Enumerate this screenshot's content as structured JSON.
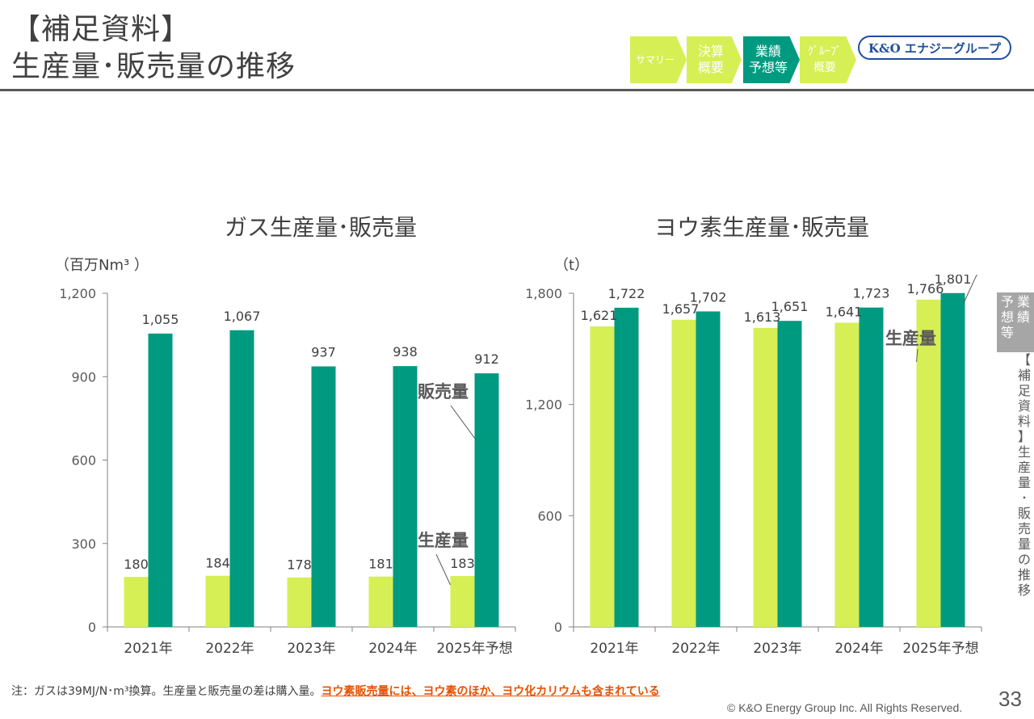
{
  "header": {
    "title_line1": "【補足資料】",
    "title_line2": "生産量･販売量の推移"
  },
  "nav": {
    "items": [
      {
        "label": "サマリー",
        "active": false
      },
      {
        "label": "決算\n概要",
        "active": false
      },
      {
        "label": "業績\n予想等",
        "active": true
      },
      {
        "label": "ｸﾞﾙｰﾌﾟ\n概要",
        "active": false
      }
    ],
    "logo_text": "K&O エナジーグループ"
  },
  "colors": {
    "production": "#d6ef55",
    "sales": "#009a80",
    "axis": "#808080"
  },
  "chart_data": [
    {
      "type": "bar",
      "title": "ガス生産量･販売量",
      "unit": "（百万Nm³ ）",
      "categories": [
        "2021年",
        "2022年",
        "2023年",
        "2024年",
        "2025年予想"
      ],
      "series": [
        {
          "name": "生産量",
          "values": [
            180,
            184,
            178,
            181,
            183
          ]
        },
        {
          "name": "販売量",
          "values": [
            1055,
            1067,
            937,
            938,
            912
          ]
        }
      ],
      "ylim": [
        0,
        1200
      ],
      "yticks": [
        "0",
        "300",
        "600",
        "900",
        "1,200"
      ],
      "labels": {
        "production": [
          "180",
          "184",
          "178",
          "181",
          "183"
        ],
        "sales": [
          "1,055",
          "1,067",
          "937",
          "938",
          "912"
        ]
      },
      "grid": false
    },
    {
      "type": "bar",
      "title": "ヨウ素生産量･販売量",
      "unit": "（t）",
      "categories": [
        "2021年",
        "2022年",
        "2023年",
        "2024年",
        "2025年予想"
      ],
      "series": [
        {
          "name": "生産量",
          "values": [
            1621,
            1657,
            1613,
            1641,
            1766
          ]
        },
        {
          "name": "販売量",
          "values": [
            1722,
            1702,
            1651,
            1723,
            1801
          ]
        }
      ],
      "ylim": [
        0,
        1800
      ],
      "yticks": [
        "0",
        "600",
        "1,200",
        "1,800"
      ],
      "labels": {
        "production": [
          "1,621",
          "1,657",
          "1,613",
          "1,641",
          "1,766"
        ],
        "sales": [
          "1,722",
          "1,702",
          "1,651",
          "1,723",
          "1,801"
        ]
      },
      "grid": false
    }
  ],
  "side": {
    "tab_col1": "業績",
    "tab_col2": "予想等",
    "vertical": "【補足資料】生産量･販売量の推移"
  },
  "footer": {
    "note_plain": "注：ガスは39MJ/N･m³換算。生産量と販売量の差は購入量。",
    "note_highlight": "ヨウ素販売量には、ヨウ素のほか、ヨウ化カリウムも含まれている",
    "copyright": "© K&O Energy Group Inc. All Rights Reserved.",
    "page": "33"
  }
}
